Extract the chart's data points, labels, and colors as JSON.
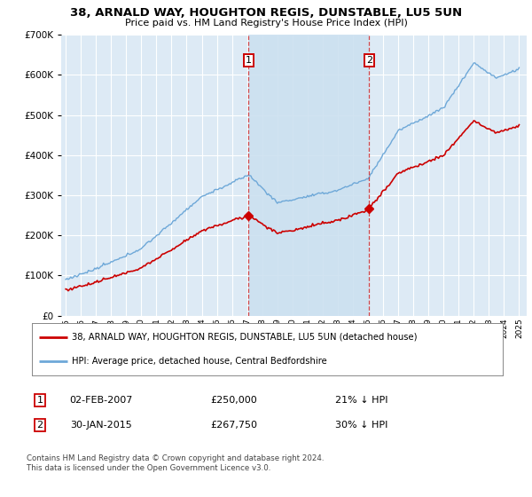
{
  "title": "38, ARNALD WAY, HOUGHTON REGIS, DUNSTABLE, LU5 5UN",
  "subtitle": "Price paid vs. HM Land Registry's House Price Index (HPI)",
  "legend_line1": "38, ARNALD WAY, HOUGHTON REGIS, DUNSTABLE, LU5 5UN (detached house)",
  "legend_line2": "HPI: Average price, detached house, Central Bedfordshire",
  "annotation1_date": "02-FEB-2007",
  "annotation1_price": "£250,000",
  "annotation1_hpi": "21% ↓ HPI",
  "annotation2_date": "30-JAN-2015",
  "annotation2_price": "£267,750",
  "annotation2_hpi": "30% ↓ HPI",
  "footnote": "Contains HM Land Registry data © Crown copyright and database right 2024.\nThis data is licensed under the Open Government Licence v3.0.",
  "sale1_year": 2007.1,
  "sale2_year": 2015.08,
  "sale1_price": 250000,
  "sale2_price": 267750,
  "red_color": "#cc0000",
  "blue_color": "#6ea8d8",
  "shade_color": "#cce0f0",
  "background_color": "#ffffff",
  "plot_bg_color": "#ddeaf5",
  "grid_color": "#ffffff",
  "ylim": [
    0,
    700000
  ],
  "xlim_start": 1994.7,
  "xlim_end": 2025.5
}
